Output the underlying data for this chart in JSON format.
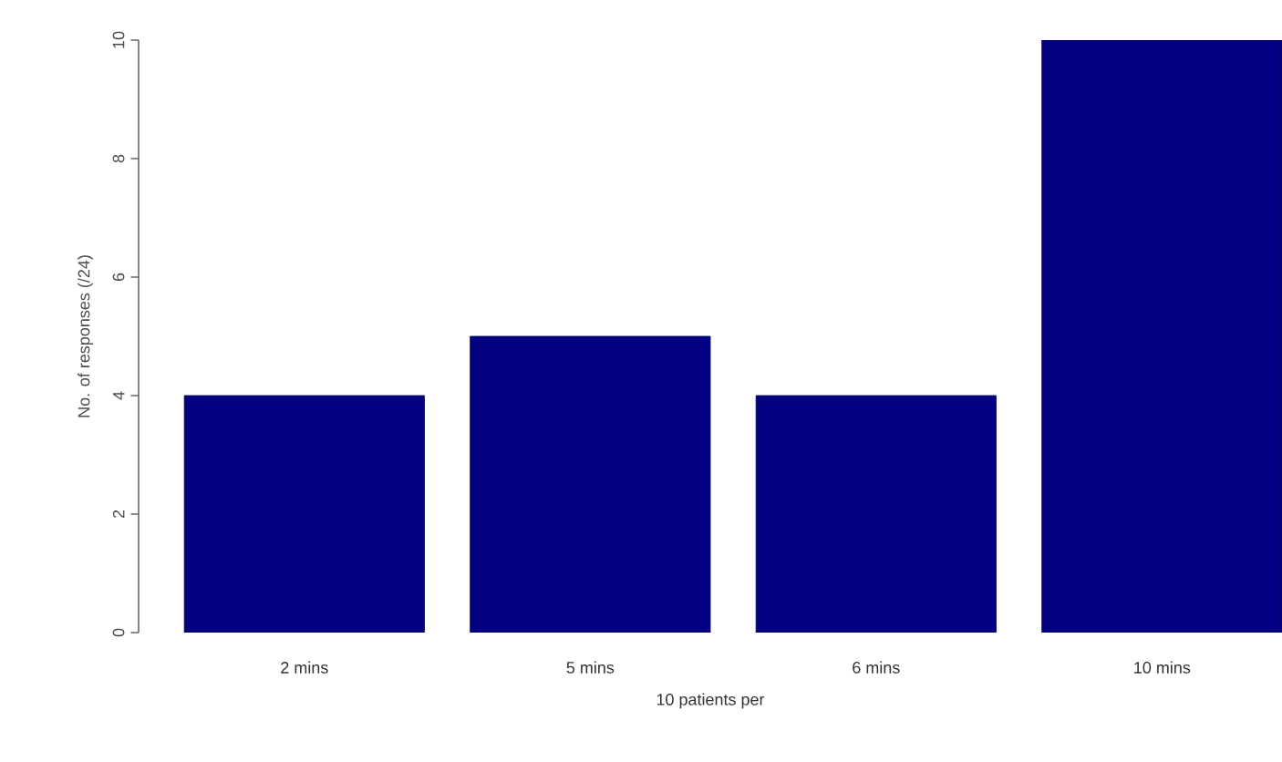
{
  "chart_data": {
    "type": "bar",
    "xlabel": "10 patients per",
    "ylabel": "No. of responses (/24)",
    "categories": [
      "2 mins",
      "5 mins",
      "6 mins",
      "10 mins"
    ],
    "values": [
      4,
      5,
      4,
      10
    ],
    "color": "#000080",
    "ylim": [
      0,
      10
    ],
    "yticks": [
      0,
      2,
      4,
      6,
      8,
      10
    ]
  }
}
